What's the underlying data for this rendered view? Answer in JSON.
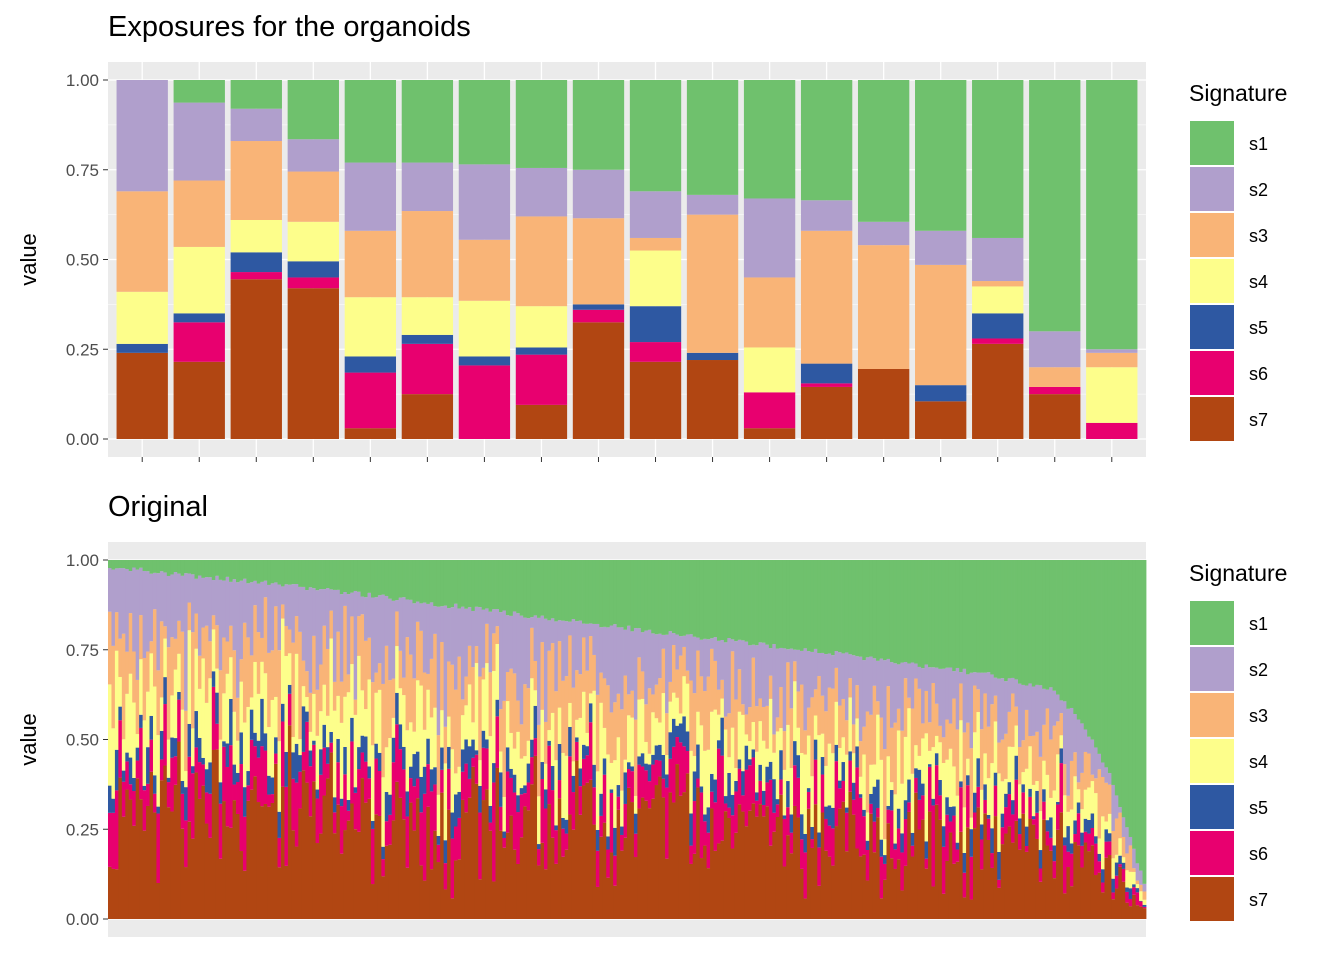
{
  "colors": {
    "s1": "#6fc16d",
    "s2": "#b09fcc",
    "s3": "#f9b477",
    "s4": "#fdfe8b",
    "s5": "#2e58a2",
    "s6": "#e8006f",
    "s7": "#b14612",
    "panel": "#ebebeb",
    "grid": "#ffffff"
  },
  "chart_data": [
    {
      "type": "bar",
      "stacked": true,
      "title": "Exposures for the organoids",
      "xlabel": "",
      "ylabel": "value",
      "ylim": [
        0,
        1
      ],
      "yticks": [
        "0.00",
        "0.25",
        "0.50",
        "0.75",
        "1.00"
      ],
      "legend_title": "Signature",
      "legend_position": "right",
      "series_names": [
        "s1",
        "s2",
        "s3",
        "s4",
        "s5",
        "s6",
        "s7"
      ],
      "samples": [
        {
          "s1": 0.0,
          "s2": 0.31,
          "s3": 0.28,
          "s4": 0.145,
          "s5": 0.025,
          "s6": 0.0,
          "s7": 0.24
        },
        {
          "s1": 0.063,
          "s2": 0.217,
          "s3": 0.185,
          "s4": 0.185,
          "s5": 0.025,
          "s6": 0.11,
          "s7": 0.215
        },
        {
          "s1": 0.08,
          "s2": 0.09,
          "s3": 0.22,
          "s4": 0.09,
          "s5": 0.055,
          "s6": 0.02,
          "s7": 0.445
        },
        {
          "s1": 0.165,
          "s2": 0.09,
          "s3": 0.14,
          "s4": 0.11,
          "s5": 0.045,
          "s6": 0.03,
          "s7": 0.42
        },
        {
          "s1": 0.23,
          "s2": 0.19,
          "s3": 0.185,
          "s4": 0.165,
          "s5": 0.045,
          "s6": 0.155,
          "s7": 0.03
        },
        {
          "s1": 0.23,
          "s2": 0.135,
          "s3": 0.24,
          "s4": 0.105,
          "s5": 0.025,
          "s6": 0.14,
          "s7": 0.125
        },
        {
          "s1": 0.235,
          "s2": 0.21,
          "s3": 0.17,
          "s4": 0.155,
          "s5": 0.025,
          "s6": 0.205,
          "s7": 0.0
        },
        {
          "s1": 0.245,
          "s2": 0.135,
          "s3": 0.25,
          "s4": 0.115,
          "s5": 0.02,
          "s6": 0.14,
          "s7": 0.095
        },
        {
          "s1": 0.25,
          "s2": 0.135,
          "s3": 0.24,
          "s4": 0.0,
          "s5": 0.015,
          "s6": 0.035,
          "s7": 0.325
        },
        {
          "s1": 0.31,
          "s2": 0.13,
          "s3": 0.035,
          "s4": 0.155,
          "s5": 0.1,
          "s6": 0.055,
          "s7": 0.215
        },
        {
          "s1": 0.32,
          "s2": 0.055,
          "s3": 0.385,
          "s4": 0.0,
          "s5": 0.02,
          "s6": 0.0,
          "s7": 0.22
        },
        {
          "s1": 0.33,
          "s2": 0.22,
          "s3": 0.195,
          "s4": 0.125,
          "s5": 0.0,
          "s6": 0.1,
          "s7": 0.03
        },
        {
          "s1": 0.335,
          "s2": 0.085,
          "s3": 0.37,
          "s4": 0.0,
          "s5": 0.055,
          "s6": 0.01,
          "s7": 0.145
        },
        {
          "s1": 0.395,
          "s2": 0.065,
          "s3": 0.345,
          "s4": 0.0,
          "s5": 0.0,
          "s6": 0.0,
          "s7": 0.195
        },
        {
          "s1": 0.42,
          "s2": 0.095,
          "s3": 0.335,
          "s4": 0.0,
          "s5": 0.045,
          "s6": 0.0,
          "s7": 0.105
        },
        {
          "s1": 0.44,
          "s2": 0.12,
          "s3": 0.015,
          "s4": 0.075,
          "s5": 0.07,
          "s6": 0.015,
          "s7": 0.265
        },
        {
          "s1": 0.7,
          "s2": 0.1,
          "s3": 0.055,
          "s4": 0.0,
          "s5": 0.0,
          "s6": 0.02,
          "s7": 0.125
        },
        {
          "s1": 0.75,
          "s2": 0.01,
          "s3": 0.04,
          "s4": 0.155,
          "s5": 0.0,
          "s6": 0.045,
          "s7": 0.0
        }
      ]
    },
    {
      "type": "bar",
      "stacked": true,
      "title": "Original",
      "xlabel": "",
      "ylabel": "value",
      "ylim": [
        0,
        1
      ],
      "yticks": [
        "0.00",
        "0.25",
        "0.50",
        "0.75",
        "1.00"
      ],
      "legend_title": "Signature",
      "legend_position": "right",
      "series_names": [
        "s1",
        "s2",
        "s3",
        "s4",
        "s5",
        "s6",
        "s7"
      ],
      "n_samples": 300,
      "s1_profile_knots": [
        [
          0,
          0.02
        ],
        [
          0.2,
          0.08
        ],
        [
          0.5,
          0.19
        ],
        [
          0.7,
          0.26
        ],
        [
          0.85,
          0.32
        ],
        [
          0.91,
          0.36
        ],
        [
          0.94,
          0.45
        ],
        [
          0.97,
          0.62
        ],
        [
          1.0,
          0.9
        ]
      ],
      "mean_composition": {
        "s2": 0.18,
        "s3": 0.17,
        "s4": 0.16,
        "s5": 0.06,
        "s6": 0.12,
        "s7": 0.31
      }
    }
  ]
}
